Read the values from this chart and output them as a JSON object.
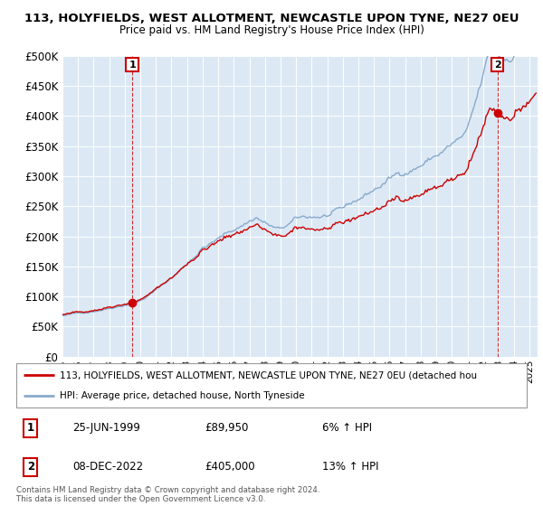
{
  "title_line1": "113, HOLYFIELDS, WEST ALLOTMENT, NEWCASTLE UPON TYNE, NE27 0EU",
  "title_line2": "Price paid vs. HM Land Registry's House Price Index (HPI)",
  "ytick_values": [
    0,
    50000,
    100000,
    150000,
    200000,
    250000,
    300000,
    350000,
    400000,
    450000,
    500000
  ],
  "ylim": [
    0,
    500000
  ],
  "xlim_start": 1995.0,
  "xlim_end": 2025.5,
  "hpi_color": "#88aacc",
  "price_color": "#cc0000",
  "plot_bg_color": "#dce9f5",
  "point1_x": 1999.48,
  "point1_y": 89950,
  "point2_x": 2022.93,
  "point2_y": 405000,
  "point1_label": "1",
  "point2_label": "2",
  "legend_line1": "113, HOLYFIELDS, WEST ALLOTMENT, NEWCASTLE UPON TYNE, NE27 0EU (detached hou",
  "legend_line2": "HPI: Average price, detached house, North Tyneside",
  "annotation1_date": "25-JUN-1999",
  "annotation1_price": "£89,950",
  "annotation1_hpi": "6% ↑ HPI",
  "annotation2_date": "08-DEC-2022",
  "annotation2_price": "£405,000",
  "annotation2_hpi": "13% ↑ HPI",
  "footer": "Contains HM Land Registry data © Crown copyright and database right 2024.\nThis data is licensed under the Open Government Licence v3.0.",
  "grid_color": "#ffffff"
}
